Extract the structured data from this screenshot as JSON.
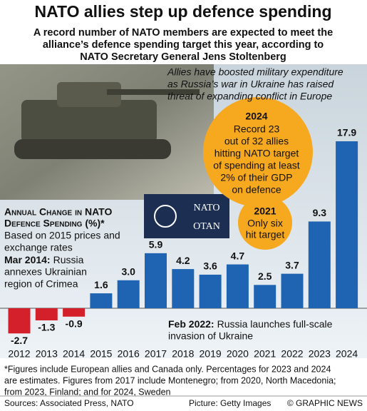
{
  "header": {
    "title": "NATO allies step up defence spending",
    "subtitle": [
      "A record number of NATO members are expected to meet the",
      "alliance’s defence spending target this year, according to",
      "NATO Secretary General Jens Stoltenberg"
    ]
  },
  "chart_data": {
    "type": "bar",
    "title": [
      "Annual Change in NATO",
      "Defence Spending (%)*"
    ],
    "subtitle": [
      "Based on 2015 prices and",
      "exchange rates"
    ],
    "categories": [
      "2012",
      "2013",
      "2014",
      "2015",
      "2016",
      "2017",
      "2018",
      "2019",
      "2020",
      "2021",
      "2022",
      "2023",
      "2024"
    ],
    "values": [
      -2.7,
      -1.3,
      -0.9,
      1.6,
      3.0,
      5.9,
      4.2,
      3.6,
      4.7,
      2.5,
      3.7,
      9.3,
      17.9
    ],
    "value_labels": [
      "-2.7",
      "-1.3",
      "-0.9",
      "1.6",
      "3.0",
      "5.9",
      "4.2",
      "3.6",
      "4.7",
      "2.5",
      "3.7",
      "9.3",
      "17.9"
    ],
    "color": "#1f63b3",
    "negative_color": "#d3202b"
  },
  "annotations": {
    "photo_caption": [
      "Allies have boosted military expenditure",
      "as Russia’s war in Ukraine has raised",
      "threat of expanding conflict in Europe"
    ],
    "callout_2024": {
      "label": "2024",
      "lines": [
        "Record 23",
        "out of 32 allies",
        "hitting NATO target",
        "of spending at least",
        "2% of their GDP",
        "on defence"
      ]
    },
    "callout_2021": {
      "label": "2021",
      "lines": [
        "Only six",
        "hit target"
      ]
    },
    "mar_2014": {
      "label": "Mar 2014:",
      "lines": [
        "Russia",
        "annexes Ukrainian",
        "region of Crimea"
      ]
    },
    "feb_2022": {
      "label": "Feb 2022:",
      "lines": [
        "Russia launches full-scale",
        "invasion of Ukraine"
      ]
    },
    "flag": [
      "NATO",
      "OTAN"
    ]
  },
  "footer": {
    "footnote": [
      "*Figures include European allies and Canada only. Percentages for 2023 and 2024",
      "are estimates. Figures from 2017 include Montenegro; from 2020, North Macedonia;",
      "from 2023, Finland; and for 2024, Sweden"
    ],
    "sources": "Sources: Associated Press, NATO",
    "picture": "Picture: Getty Images",
    "copyright": "© GRAPHIC NEWS"
  }
}
